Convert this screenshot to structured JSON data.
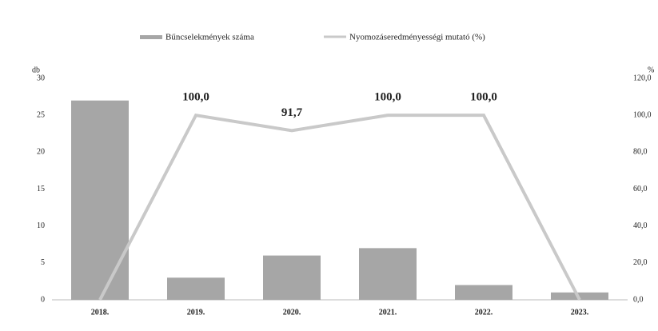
{
  "chart_data": {
    "type": "bar_line",
    "legend": "top",
    "y_label": "db",
    "y2_label": "%",
    "categories": [
      "2018.",
      "2019.",
      "2020.",
      "2021.",
      "2022.",
      "2023."
    ],
    "series": [
      {
        "name": "Bűncselekmények száma",
        "type": "bar",
        "color": "#a6a6a6",
        "values": [
          27,
          3,
          6,
          7,
          2,
          1
        ]
      },
      {
        "name": "Nyomozáseredményességi mutató (%)",
        "type": "line",
        "axis": "y2",
        "color": "#c9c9c9",
        "values": [
          0,
          100,
          91.7,
          100,
          100,
          0
        ],
        "value_labels": [
          null,
          "100,0",
          "91,7",
          "100,0",
          "100,0",
          null
        ]
      }
    ],
    "ylim": [
      0,
      30
    ],
    "yticks": [
      0,
      5,
      10,
      15,
      20,
      25,
      30
    ],
    "y2lim": [
      0,
      120
    ],
    "y2ticks": [
      {
        "value": 0,
        "label": "0,0"
      },
      {
        "value": 20,
        "label": "20,0"
      },
      {
        "value": 40,
        "label": "40,0"
      },
      {
        "value": 60,
        "label": "60,0"
      },
      {
        "value": 80,
        "label": "80,0"
      },
      {
        "value": 100,
        "label": "100,0"
      },
      {
        "value": 120,
        "label": "120,0"
      }
    ]
  }
}
